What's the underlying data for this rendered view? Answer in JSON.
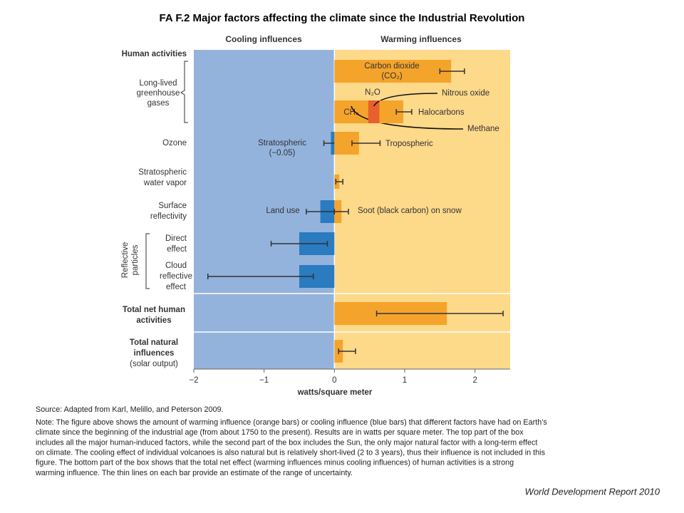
{
  "chart_data": {
    "type": "bar",
    "title": "FA F.2 Major factors affecting the climate since the Industrial Revolution",
    "cooling_label": "Cooling influences",
    "warming_label": "Warming influences",
    "xlabel": "watts/square meter",
    "xlim": [
      -2,
      2.5
    ],
    "xticks": [
      {
        "value": -2,
        "label": "−2"
      },
      {
        "value": -1,
        "label": "−1"
      },
      0,
      1,
      2
    ],
    "left_labels": [
      [
        "Human activities"
      ],
      [
        "Long-lived",
        "greenhouse",
        "gases"
      ],
      [
        "Ozone"
      ],
      [
        "Stratospheric",
        "water vapor"
      ],
      [
        "Surface",
        "reflectivity"
      ],
      [
        "Direct",
        "effect"
      ],
      [
        "Cloud",
        "reflective",
        "effect"
      ],
      [
        "Reflective",
        "particles"
      ],
      [
        "Total net human",
        "activities"
      ],
      [
        "Total natural",
        "influences"
      ],
      [
        "(solar output)"
      ]
    ],
    "rows": [
      {
        "bars": [
          {
            "name": [
              "Carbon dioxide",
              "(CO₂)"
            ],
            "value": 1.66,
            "range": [
              1.5,
              1.85
            ],
            "color": "#f5a42b"
          }
        ]
      },
      {
        "bars": [
          {
            "name": [
              "CH₄"
            ],
            "callout": "Methane",
            "value": 0.48,
            "color": "#f5a42b"
          },
          {
            "name": [
              "N₂O"
            ],
            "callout": "Nitrous oxide",
            "value": 0.16,
            "color": "#e8602c"
          },
          {
            "name": [
              "Halocarbons"
            ],
            "value": 0.34,
            "range": [
              0.88,
              1.1
            ],
            "color": "#f5a42b"
          }
        ]
      },
      {
        "bars": [
          {
            "name": [
              "Stratospheric"
            ],
            "value_label": "(−0.05)",
            "value": -0.05,
            "range": [
              -0.15,
              0.05
            ],
            "color": "#2a7bbf"
          },
          {
            "name": [
              "Tropospheric"
            ],
            "value": 0.35,
            "range": [
              0.25,
              0.65
            ],
            "color": "#f5a42b"
          }
        ]
      },
      {
        "bars": [
          {
            "value": 0.07,
            "range": [
              0.02,
              0.12
            ],
            "color": "#f5a42b"
          }
        ]
      },
      {
        "bars": [
          {
            "name": [
              "Land use"
            ],
            "value": -0.2,
            "range": [
              -0.4,
              0.0
            ],
            "color": "#2a7bbf"
          },
          {
            "name": [
              "Soot (black carbon) on snow"
            ],
            "value": 0.1,
            "range": [
              0.0,
              0.2
            ],
            "color": "#f5a42b"
          }
        ]
      },
      {
        "bars": [
          {
            "value": -0.5,
            "range": [
              -0.9,
              -0.1
            ],
            "color": "#2a7bbf"
          }
        ]
      },
      {
        "bars": [
          {
            "value": -0.5,
            "range": [
              -1.8,
              -0.3
            ],
            "color": "#2a7bbf"
          }
        ]
      },
      {
        "bars": [
          {
            "value": 1.6,
            "range": [
              0.6,
              2.4
            ],
            "color": "#f5a42b"
          }
        ]
      },
      {
        "bars": [
          {
            "value": 0.12,
            "range": [
              0.06,
              0.3
            ],
            "color": "#f5a42b"
          }
        ]
      }
    ],
    "source": "Source: Adapted from Karl, Melillo, and Peterson 2009.",
    "note": [
      "Note: The figure above shows the amount of warming influence (orange bars) or cooling influence (blue bars) that different factors have had on Earth’s",
      "climate since the beginning of the industrial age (from about 1750 to the present). Results are in watts per square meter. The top part of the box",
      "includes all the major human-induced  factors, while the second part of the box includes the Sun, the only major natural factor with a long-term effect",
      "on climate. The cooling effect of individual volcanoes is also natural but is relatively short-lived (2 to 3 years), thus their influence is not included in this",
      "figure. The bottom part of the box shows that the total net effect (warming influences  minus cooling influences) of human activities is a strong",
      "warming influence. The thin lines on each bar provide an estimate of the range of uncertainty."
    ],
    "footer": "World Development Report 2010"
  }
}
